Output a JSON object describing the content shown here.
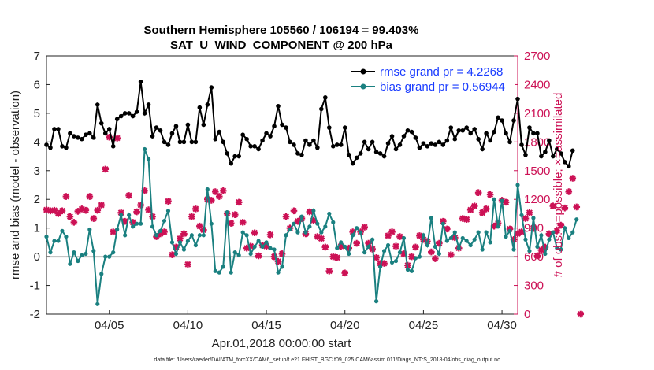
{
  "chart_data": {
    "type": "line",
    "title": "Southern Hemisphere 105560 / 106194 = 99.403%",
    "subtitle": "SAT_U_WIND_COMPONENT @ 200 hPa",
    "xlabel": "Apr.01,2018 00:00:00 start",
    "ylabel_left": "rmse and bias (model - observation)",
    "ylabel_right": "# of obs: o=possible; ×=assimilated",
    "footer": "data file: /Users/raeder/DAI/ATM_forcXX/CAM6_setup/f.e21.FHIST_BGC.f09_025.CAM6assim.011/Diags_NTrS_2018-04/obs_diag_output.nc",
    "x_ticks": [
      "04/05",
      "04/10",
      "04/15",
      "04/20",
      "04/25",
      "04/30"
    ],
    "x_tick_days": [
      5,
      10,
      15,
      20,
      25,
      30
    ],
    "xlim": [
      1,
      31
    ],
    "ylim_left": [
      -2,
      7
    ],
    "left_ticks": [
      "-2",
      "-1",
      "0",
      "1",
      "2",
      "3",
      "4",
      "5",
      "6",
      "7"
    ],
    "ylim_right": [
      0,
      2700
    ],
    "right_ticks": [
      "0",
      "300",
      "600",
      "900",
      "1200",
      "1500",
      "1800",
      "2100",
      "2400",
      "2700"
    ],
    "legend": [
      {
        "name": "rmse grand pr = 4.2268",
        "color": "#000000"
      },
      {
        "name": "bias grand pr = 0.56944",
        "color": "#1a8080"
      }
    ],
    "legend_text_color": "#1a3cff",
    "right_axis_color": "#cc1155",
    "zero_line_color": "#bbbbbb",
    "x_start": 1.0,
    "x_step": 0.25,
    "series": [
      {
        "name": "rmse",
        "color": "#000000",
        "values": [
          3.9,
          3.8,
          4.45,
          4.45,
          3.85,
          3.8,
          4.3,
          4.2,
          4.15,
          4.1,
          4.25,
          4.3,
          4.15,
          5.3,
          4.65,
          4.3,
          4.45,
          3.85,
          4.8,
          4.9,
          5.0,
          5.0,
          4.9,
          5.05,
          6.1,
          5.0,
          5.3,
          4.2,
          4.5,
          4.4,
          4.0,
          3.9,
          4.3,
          4.55,
          4.0,
          4.0,
          4.6,
          4.0,
          4.0,
          5.2,
          4.6,
          5.3,
          5.9,
          4.1,
          4.35,
          4.0,
          3.6,
          3.25,
          3.5,
          3.5,
          4.25,
          4.1,
          3.85,
          3.85,
          3.75,
          4.05,
          4.3,
          4.2,
          4.55,
          5.25,
          4.6,
          4.5,
          4.0,
          3.9,
          3.6,
          3.55,
          4.05,
          3.9,
          4.05,
          3.8,
          5.15,
          5.55,
          4.5,
          3.85,
          3.9,
          3.9,
          4.5,
          3.55,
          3.25,
          3.45,
          3.6,
          4.0,
          3.75,
          4.0,
          3.65,
          3.6,
          3.5,
          3.95,
          4.2,
          3.75,
          3.9,
          4.2,
          4.4,
          4.35,
          4.15,
          3.8,
          3.95,
          3.85,
          3.95,
          3.9,
          4.0,
          3.9,
          4.05,
          4.5,
          4.1,
          4.4,
          4.4,
          4.5,
          4.3,
          4.45,
          4.1,
          3.75,
          4.3,
          4.05,
          4.35,
          4.85,
          4.75,
          4.3,
          4.0,
          4.75,
          5.5,
          3.9,
          3.55,
          4.5,
          4.3,
          4.3,
          3.5,
          3.65,
          4.05,
          3.5,
          3.75,
          3.6,
          3.3,
          3.15,
          3.7
        ]
      },
      {
        "name": "bias",
        "color": "#1a8080",
        "values": [
          0.7,
          0.15,
          0.55,
          0.55,
          0.9,
          0.7,
          -0.25,
          0.15,
          -0.15,
          0.05,
          0.1,
          0.95,
          0.2,
          -1.65,
          -0.6,
          0.0,
          0.0,
          0.15,
          0.95,
          1.45,
          0.75,
          1.45,
          1.05,
          1.15,
          1.15,
          3.75,
          3.4,
          1.05,
          0.75,
          0.9,
          1.25,
          1.6,
          0.5,
          0.1,
          0.5,
          0.25,
          0.55,
          0.75,
          0.4,
          0.75,
          0.75,
          2.35,
          1.15,
          -0.5,
          -0.55,
          -0.35,
          1.55,
          -0.55,
          0.15,
          0.05,
          0.85,
          0.75,
          0.1,
          0.35,
          0.55,
          0.35,
          0.5,
          0.3,
          0.25,
          -0.55,
          -0.35,
          0.75,
          0.95,
          1.15,
          0.85,
          1.4,
          0.85,
          1.05,
          1.6,
          1.15,
          0.85,
          1.05,
          1.5,
          1.2,
          0.3,
          0.5,
          0.35,
          0.1,
          0.75,
          1.0,
          0.85,
          0.15,
          0.35,
          0.6,
          -1.55,
          -0.35,
          0.2,
          0.4,
          -0.2,
          -0.15,
          0.15,
          0.65,
          -0.45,
          -0.5,
          -0.05,
          0.0,
          0.75,
          0.4,
          1.35,
          0.35,
          0.1,
          1.15,
          0.55,
          0.65,
          0.85,
          0.3,
          0.65,
          0.55,
          0.4,
          0.6,
          0.85,
          0.25,
          0.85,
          0.5,
          2.0,
          1.05,
          1.95,
          0.7,
          0.9,
          0.25,
          2.5,
          1.45,
          0.6,
          0.2,
          1.35,
          0.35,
          0.75,
          0.1,
          0.6,
          0.85,
          0.3,
          0.25,
          1.0,
          0.65,
          0.85,
          1.3
        ]
      },
      {
        "name": "obs assimilated",
        "color": "#cc1155",
        "values": [
          1090,
          1080,
          1085,
          1050,
          1080,
          1230,
          1020,
          960,
          1075,
          1100,
          1085,
          1230,
          1000,
          1085,
          1140,
          1515,
          1850,
          860,
          1840,
          1060,
          970,
          1240,
          960,
          1070,
          1140,
          1290,
          1090,
          1020,
          810,
          840,
          860,
          1180,
          620,
          700,
          790,
          840,
          520,
          1020,
          1100,
          920,
          880,
          1200,
          1190,
          1280,
          1230,
          1290,
          1050,
          950,
          1040,
          1170,
          960,
          690,
          710,
          850,
          610,
          720,
          710,
          830,
          600,
          550,
          630,
          1020,
          900,
          1080,
          970,
          1000,
          840,
          1070,
          980,
          810,
          790,
          700,
          450,
          600,
          590,
          710,
          430,
          690,
          860,
          740,
          860,
          910,
          740,
          680,
          590,
          530,
          530,
          820,
          860,
          710,
          810,
          630,
          510,
          600,
          700,
          820,
          780,
          760,
          650,
          580,
          740,
          970,
          890,
          620,
          800,
          690,
          1000,
          990,
          1090,
          1130,
          1270,
          1060,
          1100,
          1250,
          920,
          950,
          1190,
          1170,
          890,
          780,
          840,
          860,
          1000,
          1060,
          900,
          610,
          670,
          700,
          840,
          1130,
          870,
          930,
          1110,
          1280,
          1420,
          1120,
          0
        ]
      }
    ]
  }
}
